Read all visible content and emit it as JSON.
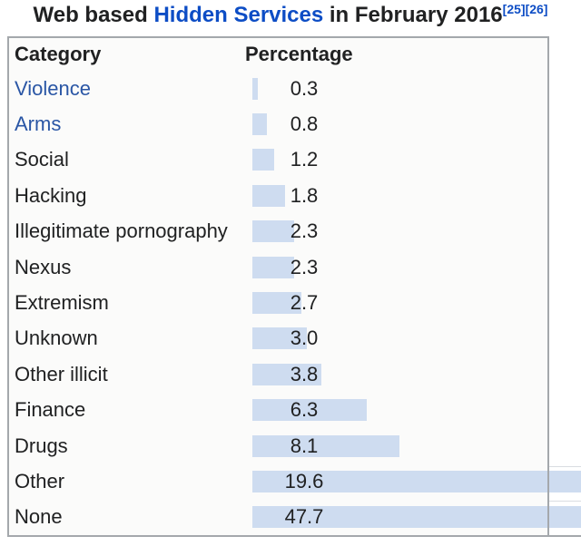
{
  "title": {
    "prefix": "Web based ",
    "link_text": "Hidden Services",
    "suffix": " in February 2016",
    "refs": [
      "[25]",
      "[26]"
    ]
  },
  "table": {
    "headers": {
      "category": "Category",
      "percentage": "Percentage"
    },
    "rows": [
      {
        "label": "Violence",
        "value": "0.3",
        "is_link": true
      },
      {
        "label": "Arms",
        "value": "0.8",
        "is_link": true
      },
      {
        "label": "Social",
        "value": "1.2",
        "is_link": false
      },
      {
        "label": "Hacking",
        "value": "1.8",
        "is_link": false
      },
      {
        "label": "Illegitimate pornography",
        "value": "2.3",
        "is_link": false
      },
      {
        "label": "Nexus",
        "value": "2.3",
        "is_link": false
      },
      {
        "label": "Extremism",
        "value": "2.7",
        "is_link": false
      },
      {
        "label": "Unknown",
        "value": "3.0",
        "is_link": false
      },
      {
        "label": "Other illicit",
        "value": "3.8",
        "is_link": false
      },
      {
        "label": "Finance",
        "value": "6.3",
        "is_link": false
      },
      {
        "label": "Drugs",
        "value": "8.1",
        "is_link": false
      },
      {
        "label": "Other",
        "value": "19.6",
        "is_link": false
      },
      {
        "label": "None",
        "value": "47.7",
        "is_link": false
      }
    ]
  },
  "colors": {
    "bar_fill": "#cedcf0",
    "title_link": "#0d4dc5",
    "row_link": "#2a56a5",
    "text": "#202122",
    "table_border": "#a4a8ac",
    "table_background": "#fbfbfa"
  },
  "chart_data": {
    "type": "bar",
    "orientation": "horizontal",
    "title": "Web based Hidden Services in February 2016",
    "references": [
      "[25]",
      "[26]"
    ],
    "xlabel": "Percentage",
    "ylabel": "Category",
    "unit": "percent",
    "xlim": [
      0,
      50
    ],
    "grid": false,
    "legend": "none",
    "categories": [
      "Violence",
      "Arms",
      "Social",
      "Hacking",
      "Illegitimate pornography",
      "Nexus",
      "Extremism",
      "Unknown",
      "Other illicit",
      "Finance",
      "Drugs",
      "Other",
      "None"
    ],
    "values": [
      0.3,
      0.8,
      1.2,
      1.8,
      2.3,
      2.3,
      2.7,
      3.0,
      3.8,
      6.3,
      8.1,
      19.6,
      47.7
    ]
  }
}
